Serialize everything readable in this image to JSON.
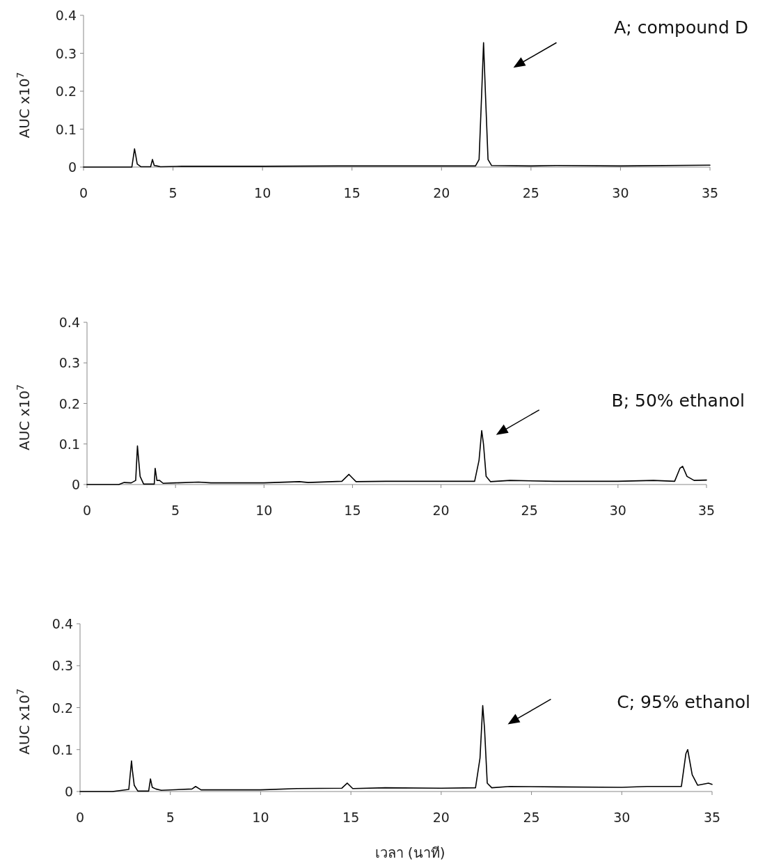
{
  "chart_data": [
    {
      "type": "line",
      "ylabel": "AUC x10$^{7}$",
      "annotations": [
        "A; compound D"
      ],
      "xlim": [
        0,
        35
      ],
      "ylim": [
        0,
        0.4
      ],
      "xticks": [
        0,
        5,
        10,
        15,
        20,
        25,
        30,
        35
      ],
      "yticks": [
        0,
        0.1,
        0.2,
        0.3,
        0.4
      ],
      "series": [
        {
          "color": "#000000",
          "x": [
            0,
            2.7,
            2.85,
            2.92,
            3.0,
            3.2,
            3.75,
            3.85,
            3.95,
            4.1,
            4.3,
            5.5,
            10,
            14.2,
            18,
            21.9,
            22.1,
            22.25,
            22.35,
            22.45,
            22.6,
            22.8,
            25,
            26.4,
            30,
            35
          ],
          "values": [
            0,
            0,
            0.048,
            0.03,
            0.008,
            0.001,
            0.001,
            0.02,
            0.004,
            0.003,
            0.001,
            0.002,
            0.002,
            0.003,
            0.003,
            0.003,
            0.02,
            0.2,
            0.328,
            0.2,
            0.02,
            0.004,
            0.003,
            0.004,
            0.003,
            0.005
          ]
        }
      ]
    },
    {
      "type": "line",
      "ylabel": "AUC x10$^{7}$",
      "annotations": [
        "B; 50% ethanol"
      ],
      "xlim": [
        0,
        35
      ],
      "ylim": [
        0,
        0.4
      ],
      "xticks": [
        0,
        5,
        10,
        15,
        20,
        25,
        30,
        35
      ],
      "yticks": [
        0,
        0.1,
        0.2,
        0.3,
        0.4
      ],
      "series": [
        {
          "color": "#000000",
          "x": [
            0,
            1.8,
            2.1,
            2.5,
            2.75,
            2.85,
            2.9,
            3.0,
            3.2,
            3.8,
            3.85,
            3.95,
            4.1,
            4.3,
            5,
            6.3,
            7,
            10,
            12,
            12.5,
            14.4,
            14.8,
            15.2,
            16.9,
            20.2,
            21.2,
            21.9,
            22.15,
            22.3,
            22.4,
            22.55,
            22.8,
            23.9,
            26.4,
            30,
            32,
            33.2,
            33.5,
            33.65,
            33.9,
            34.3,
            35
          ],
          "values": [
            0,
            0,
            0.005,
            0.004,
            0.01,
            0.095,
            0.07,
            0.02,
            0.001,
            0.001,
            0.04,
            0.01,
            0.01,
            0.003,
            0.004,
            0.006,
            0.004,
            0.004,
            0.007,
            0.005,
            0.008,
            0.025,
            0.007,
            0.008,
            0.008,
            0.008,
            0.008,
            0.06,
            0.133,
            0.1,
            0.02,
            0.007,
            0.01,
            0.008,
            0.008,
            0.01,
            0.008,
            0.04,
            0.045,
            0.02,
            0.01,
            0.011
          ]
        }
      ]
    },
    {
      "type": "line",
      "ylabel": "AUC x10$^{7}$",
      "xlabel": "เวลา (นาที)",
      "annotations": [
        "C; 95% ethanol"
      ],
      "xlim": [
        0,
        35
      ],
      "ylim": [
        0,
        0.4
      ],
      "xticks": [
        0,
        5,
        10,
        15,
        20,
        25,
        30,
        35
      ],
      "yticks": [
        0,
        0.1,
        0.2,
        0.3,
        0.4
      ],
      "series": [
        {
          "color": "#000000",
          "x": [
            0,
            1.8,
            2.7,
            2.85,
            2.9,
            3.0,
            3.2,
            3.8,
            3.9,
            4.0,
            4.2,
            4.5,
            6.2,
            6.4,
            6.7,
            10,
            12,
            14.5,
            14.8,
            15.1,
            16.9,
            20,
            21.9,
            22.15,
            22.3,
            22.4,
            22.55,
            22.8,
            23.8,
            26.4,
            30,
            31.4,
            33.3,
            33.55,
            33.65,
            33.9,
            34.2,
            34.8,
            35
          ],
          "values": [
            0,
            0,
            0.005,
            0.073,
            0.05,
            0.015,
            0.001,
            0.001,
            0.03,
            0.01,
            0.006,
            0.003,
            0.006,
            0.012,
            0.004,
            0.004,
            0.007,
            0.008,
            0.02,
            0.007,
            0.009,
            0.008,
            0.009,
            0.08,
            0.205,
            0.15,
            0.02,
            0.009,
            0.012,
            0.011,
            0.01,
            0.012,
            0.012,
            0.09,
            0.1,
            0.04,
            0.015,
            0.02,
            0.017
          ]
        }
      ]
    }
  ]
}
